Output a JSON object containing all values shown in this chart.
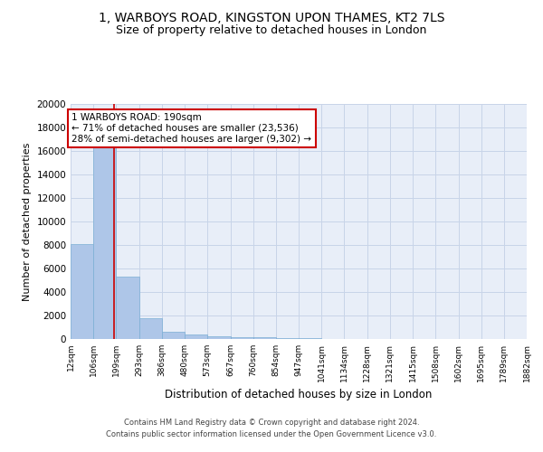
{
  "title1": "1, WARBOYS ROAD, KINGSTON UPON THAMES, KT2 7LS",
  "title2": "Size of property relative to detached houses in London",
  "xlabel": "Distribution of detached houses by size in London",
  "ylabel": "Number of detached properties",
  "bar_values": [
    8050,
    16600,
    5300,
    1800,
    650,
    350,
    200,
    155,
    150,
    100,
    50,
    20,
    10,
    5,
    3,
    2,
    1,
    1,
    1,
    1
  ],
  "bin_edges": [
    12,
    106,
    199,
    293,
    386,
    480,
    573,
    667,
    760,
    854,
    947,
    1041,
    1134,
    1228,
    1321,
    1415,
    1508,
    1602,
    1695,
    1789,
    1882
  ],
  "tick_labels": [
    "12sqm",
    "106sqm",
    "199sqm",
    "293sqm",
    "386sqm",
    "480sqm",
    "573sqm",
    "667sqm",
    "760sqm",
    "854sqm",
    "947sqm",
    "1041sqm",
    "1134sqm",
    "1228sqm",
    "1321sqm",
    "1415sqm",
    "1508sqm",
    "1602sqm",
    "1695sqm",
    "1789sqm",
    "1882sqm"
  ],
  "bar_color": "#aec6e8",
  "bar_edge_color": "#7bafd4",
  "vline_x": 190,
  "vline_color": "#cc0000",
  "annotation_box_text": "1 WARBOYS ROAD: 190sqm\n← 71% of detached houses are smaller (23,536)\n28% of semi-detached houses are larger (9,302) →",
  "annotation_box_color": "#cc0000",
  "ylim": [
    0,
    20000
  ],
  "yticks": [
    0,
    2000,
    4000,
    6000,
    8000,
    10000,
    12000,
    14000,
    16000,
    18000,
    20000
  ],
  "grid_color": "#c8d4e8",
  "background_color": "#e8eef8",
  "footer_line1": "Contains HM Land Registry data © Crown copyright and database right 2024.",
  "footer_line2": "Contains public sector information licensed under the Open Government Licence v3.0.",
  "title1_fontsize": 10,
  "title2_fontsize": 9,
  "xlabel_fontsize": 8.5,
  "ylabel_fontsize": 8
}
